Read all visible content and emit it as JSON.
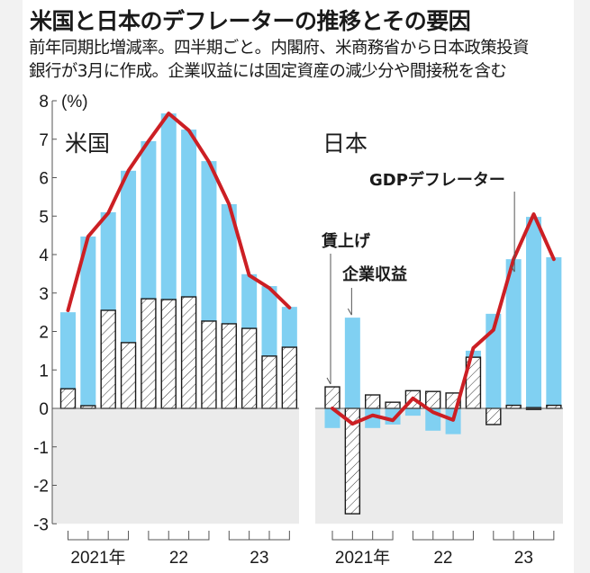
{
  "header": {
    "title": "米国と日本のデフレーターの推移とその要因",
    "subtitle_line1": "前年同期比増減率。四半期ごと。内閣府、米商務省から日本政策投資",
    "subtitle_line2": "銀行が3月に作成。企業収益には固定資産の減少分や間接税を含む"
  },
  "colors": {
    "corporate_profit": "#80d0f2",
    "gdp_deflator": "#cc1f24",
    "negative_area": "#ebebeb",
    "wage_outline": "#1a1a1a"
  },
  "chart_data": [
    {
      "type": "bar",
      "panel": "米国",
      "unit_label": "(%)",
      "ylim": [
        -3,
        8
      ],
      "yticks": [
        8,
        7,
        6,
        5,
        4,
        3,
        2,
        1,
        0,
        -1,
        -2,
        -3
      ],
      "x_groups": [
        {
          "label": "2021年",
          "quarters": 4
        },
        {
          "label": "22",
          "quarters": 4
        },
        {
          "label": "23",
          "quarters": 4
        }
      ],
      "series": [
        {
          "name": "賃上げ",
          "style": "hatched",
          "values": [
            0.51,
            0.07,
            2.55,
            1.71,
            2.85,
            2.83,
            2.9,
            2.27,
            2.2,
            2.08,
            1.36,
            1.59
          ]
        },
        {
          "name": "企業収益",
          "style": "bar",
          "values": [
            1.99,
            4.4,
            2.55,
            4.47,
            4.1,
            4.84,
            4.35,
            4.16,
            3.11,
            1.41,
            1.82,
            1.05
          ]
        },
        {
          "name": "GDPデフレーター",
          "style": "line",
          "values": [
            2.55,
            4.47,
            5.08,
            6.18,
            6.95,
            7.67,
            7.23,
            6.41,
            5.31,
            3.46,
            3.13,
            2.62
          ]
        }
      ]
    },
    {
      "type": "bar",
      "panel": "日本",
      "unit_label": "",
      "ylim": [
        -3,
        8
      ],
      "x_groups": [
        {
          "label": "2021年",
          "quarters": 4
        },
        {
          "label": "22",
          "quarters": 4
        },
        {
          "label": "23",
          "quarters": 4
        }
      ],
      "series": [
        {
          "name": "賃上げ",
          "style": "hatched",
          "values": [
            0.56,
            -2.74,
            0.35,
            0.16,
            0.46,
            0.44,
            0.4,
            1.33,
            -0.42,
            0.08,
            0.02,
            0.08
          ]
        },
        {
          "name": "企業収益",
          "style": "bar",
          "values": [
            -0.51,
            2.36,
            -0.51,
            -0.42,
            -0.19,
            -0.58,
            -0.67,
            0.17,
            2.46,
            3.8,
            4.96,
            3.85
          ]
        },
        {
          "name": "GDPデフレーター",
          "style": "line",
          "values": [
            0.0,
            -0.4,
            -0.18,
            -0.31,
            0.26,
            -0.1,
            -0.3,
            1.57,
            2.04,
            3.88,
            5.05,
            3.88
          ]
        }
      ],
      "annotations": [
        {
          "text": "賃上げ",
          "target_series": "賃上げ",
          "target_index": 0
        },
        {
          "text": "企業収益",
          "target_series": "企業収益",
          "target_index": 1
        },
        {
          "text": "GDPデフレーター",
          "target_series": "GDPデフレーター",
          "target_index": 9
        }
      ]
    }
  ]
}
